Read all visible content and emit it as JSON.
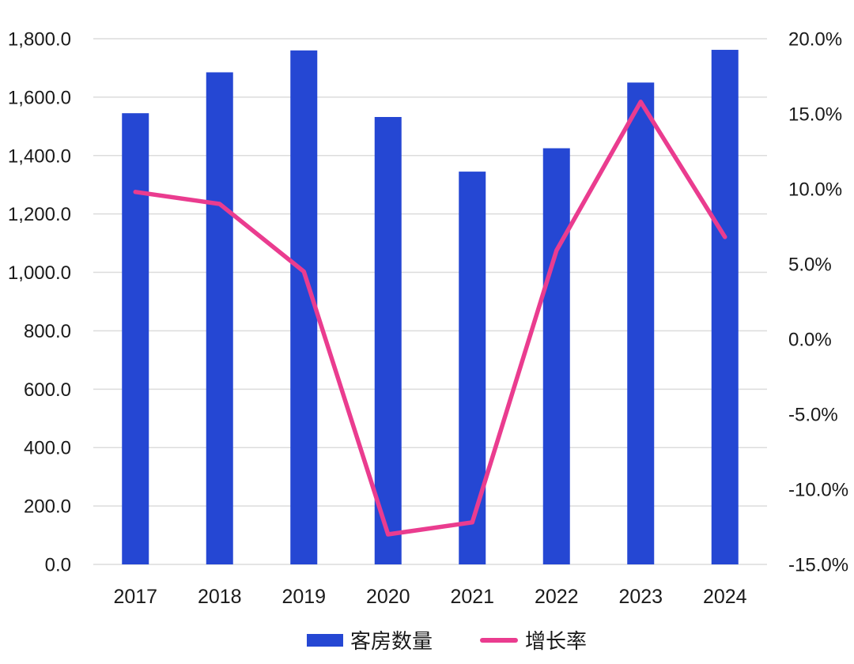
{
  "chart_data": {
    "type": "bar",
    "subtype": "combo-bar-line-dual-axis",
    "title": "",
    "categories": [
      "2017",
      "2018",
      "2019",
      "2020",
      "2021",
      "2022",
      "2023",
      "2024"
    ],
    "series": [
      {
        "name": "客房数量",
        "type": "bar",
        "axis": "left",
        "values": [
          1545,
          1685,
          1760,
          1532,
          1345,
          1425,
          1650,
          1762
        ]
      },
      {
        "name": "增长率",
        "type": "line",
        "axis": "right",
        "unit": "%",
        "values": [
          9.8,
          9.0,
          4.5,
          -13.0,
          -12.2,
          5.9,
          15.8,
          6.8
        ]
      }
    ],
    "left_axis": {
      "min": 0,
      "max": 1800,
      "step": 200,
      "tick_labels": [
        "0.0",
        "200.0",
        "400.0",
        "600.0",
        "800.0",
        "1,000.0",
        "1,200.0",
        "1,400.0",
        "1,600.0",
        "1,800.0"
      ]
    },
    "right_axis": {
      "min": -15,
      "max": 20,
      "step": 5,
      "tick_labels": [
        "-15.0%",
        "-10.0%",
        "-5.0%",
        "0.0%",
        "5.0%",
        "10.0%",
        "15.0%",
        "20.0%"
      ]
    },
    "grid": "horizontal gridlines at left-axis intervals only",
    "legend_position": "bottom-center"
  },
  "legend": {
    "bar_label": "客房数量",
    "line_label": "增长率"
  },
  "colors": {
    "bar": "#2547D3",
    "line": "#EA3C8F",
    "grid": "#DCDCDC",
    "text": "#1A1A1A",
    "background": "#FFFFFF"
  }
}
